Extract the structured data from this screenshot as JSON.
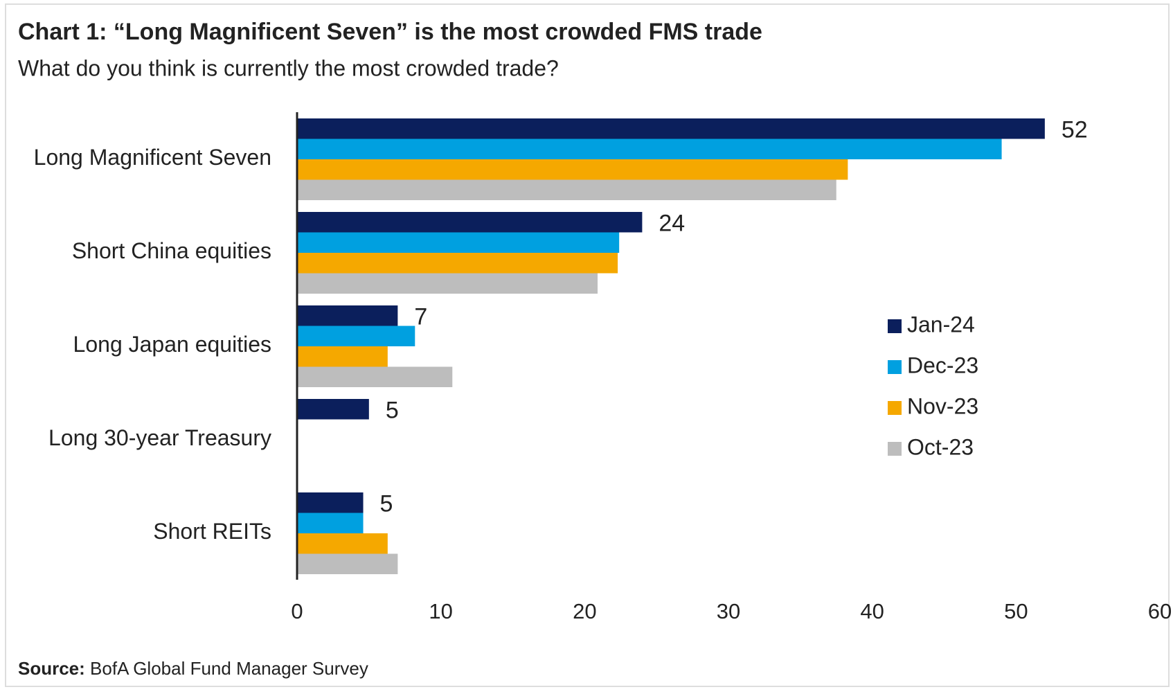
{
  "chart_data": {
    "type": "bar",
    "orientation": "horizontal",
    "title": "Chart 1: “Long Magnificent Seven” is the most crowded FMS trade",
    "subtitle": "What do you think is currently the most crowded trade?",
    "source_label": "Source:",
    "source": "BofA Global Fund Manager Survey",
    "categories": [
      "Long Magnificent Seven",
      "Short China equities",
      "Long Japan equities",
      "Long 30-year Treasury",
      "Short REITs"
    ],
    "series": [
      {
        "name": "Jan-24",
        "color": "#0b1f5c",
        "values": [
          52,
          24,
          7,
          5,
          4.6
        ],
        "value_labels": [
          "52",
          "24",
          "7",
          "5",
          "5"
        ]
      },
      {
        "name": "Dec-23",
        "color": "#00a0e0",
        "values": [
          49,
          22.4,
          8.2,
          null,
          4.6
        ]
      },
      {
        "name": "Nov-23",
        "color": "#f5a800",
        "values": [
          38.3,
          22.3,
          6.3,
          null,
          6.3
        ]
      },
      {
        "name": "Oct-23",
        "color": "#bdbdbd",
        "values": [
          37.5,
          20.9,
          10.8,
          null,
          7
        ]
      }
    ],
    "xlim": [
      0,
      60
    ],
    "xticks": [
      0,
      10,
      20,
      30,
      40,
      50,
      60
    ],
    "label_color": "#e8141b",
    "legend": "right"
  }
}
